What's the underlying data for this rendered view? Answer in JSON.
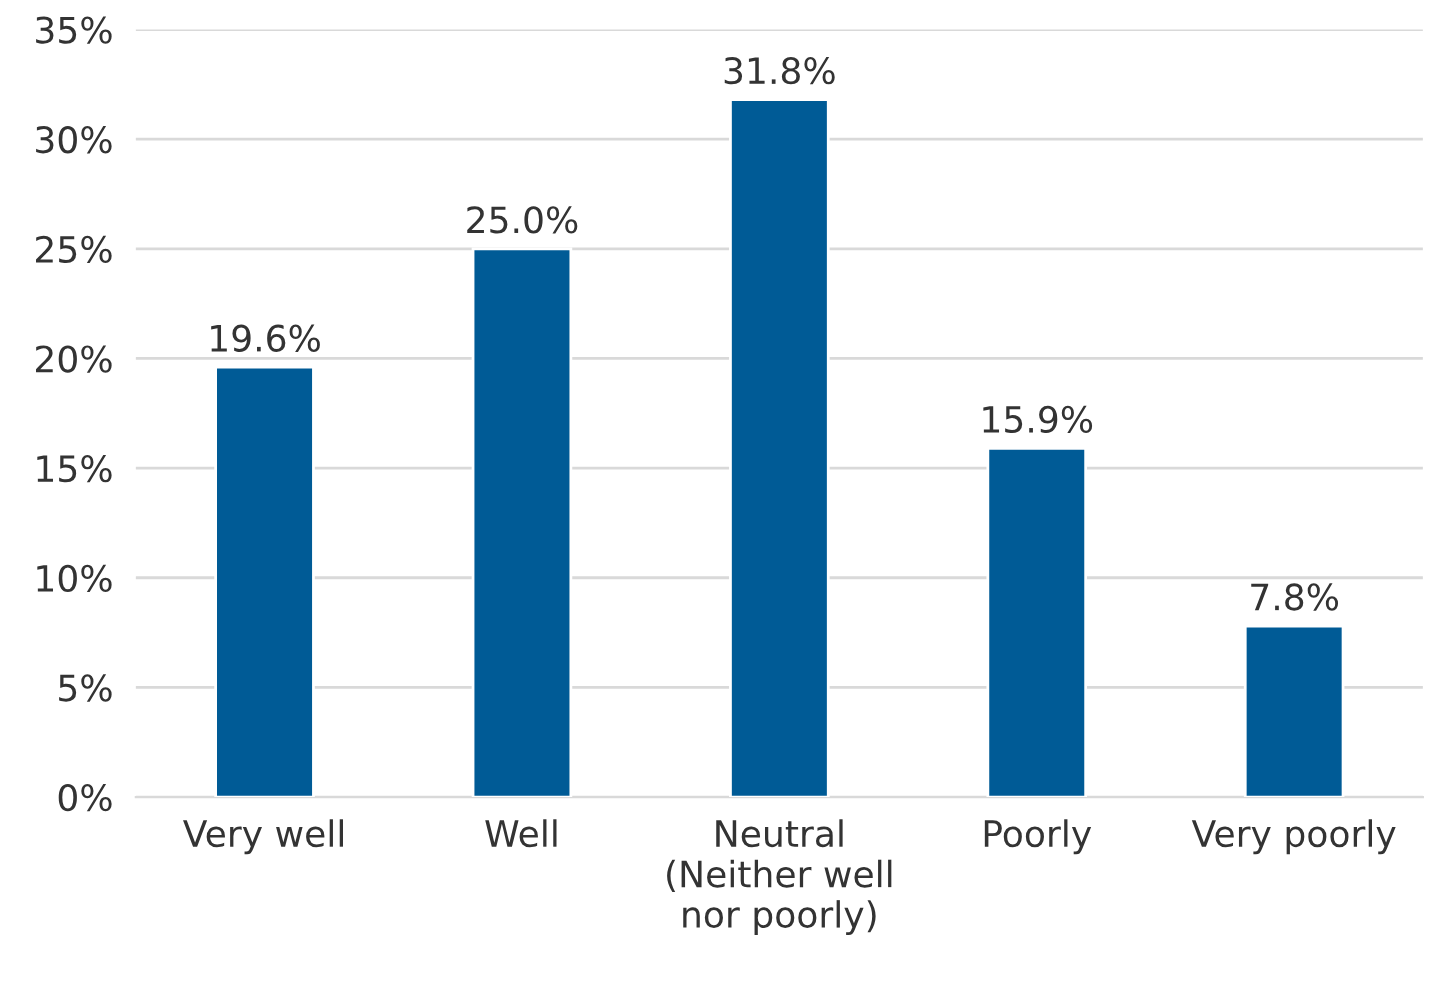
{
  "chart_data": {
    "type": "bar",
    "categories": [
      "Very well",
      "Well",
      "Neutral\n(Neither well\nnor poorly)",
      "Poorly",
      "Very poorly"
    ],
    "values": [
      19.6,
      25.0,
      31.8,
      15.9,
      7.8
    ],
    "value_labels": [
      "19.6%",
      "25.0%",
      "31.8%",
      "15.9%",
      "7.8%"
    ],
    "color": "#005b96",
    "ylim": [
      0,
      35
    ],
    "yticks": [
      {
        "value": 0,
        "label": "0%"
      },
      {
        "value": 5,
        "label": "5%"
      },
      {
        "value": 10,
        "label": "10%"
      },
      {
        "value": 15,
        "label": "15%"
      },
      {
        "value": 20,
        "label": "20%"
      },
      {
        "value": 25,
        "label": "25%"
      },
      {
        "value": 30,
        "label": "30%"
      },
      {
        "value": 35,
        "label": "35%"
      }
    ],
    "grid": "y"
  }
}
